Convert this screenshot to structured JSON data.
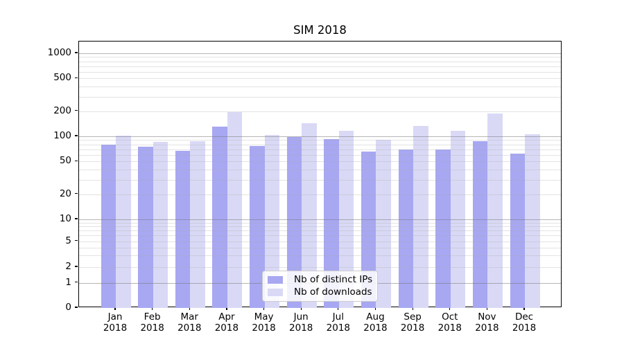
{
  "chart_data": {
    "type": "bar",
    "title": "SIM 2018",
    "y_scale": "symlog",
    "ylim": [
      0,
      1400
    ],
    "grid": true,
    "legend_position": "lower center",
    "y_ticks": [
      0,
      1,
      2,
      5,
      10,
      20,
      50,
      100,
      200,
      500,
      1000
    ],
    "months": [
      "Jan",
      "Feb",
      "Mar",
      "Apr",
      "May",
      "Jun",
      "Jul",
      "Aug",
      "Sep",
      "Oct",
      "Nov",
      "Dec"
    ],
    "year": "2018",
    "series": [
      {
        "name": "Nb of distinct IPs",
        "color": "#a7a7f2",
        "values": [
          80,
          75,
          67,
          130,
          76,
          98,
          93,
          66,
          70,
          70,
          87,
          62
        ]
      },
      {
        "name": "Nb of downloads",
        "color": "#d9d9f6",
        "values": [
          102,
          86,
          87,
          195,
          103,
          145,
          117,
          90,
          134,
          117,
          190,
          105
        ]
      }
    ]
  }
}
